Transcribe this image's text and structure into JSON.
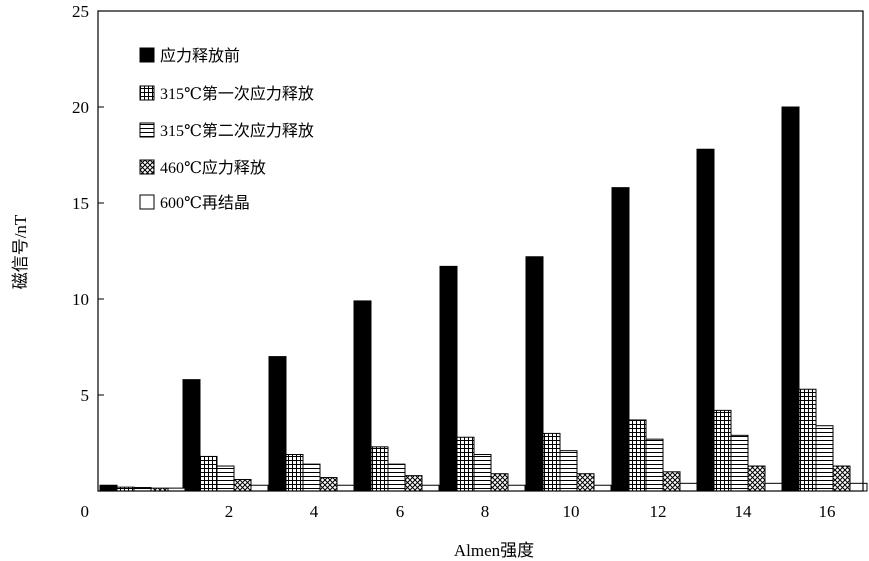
{
  "chart_data": {
    "type": "bar",
    "title": "",
    "xlabel": "Almen强度",
    "ylabel": "磁信号/nT",
    "ylim": [
      0,
      25
    ],
    "yticks": [
      "0",
      "5",
      "10",
      "15",
      "20",
      "25"
    ],
    "categories": [
      "0",
      "2",
      "4",
      "6",
      "8",
      "10",
      "12",
      "14",
      "16"
    ],
    "xtick_labels": [
      "2",
      "4",
      "6",
      "8",
      "10",
      "12",
      "14",
      "16"
    ],
    "grid": false,
    "legend_position": "top-left",
    "series": [
      {
        "name": "应力释放前",
        "pattern": "solid",
        "values": [
          0.3,
          5.8,
          7.0,
          9.9,
          11.7,
          12.2,
          15.8,
          17.8,
          20.0
        ]
      },
      {
        "name": "315℃第一次应力释放",
        "pattern": "grid",
        "values": [
          0.2,
          1.8,
          1.9,
          2.3,
          2.8,
          3.0,
          3.7,
          4.2,
          5.3
        ]
      },
      {
        "name": "315℃第二次应力释放",
        "pattern": "hlines",
        "values": [
          0.18,
          1.3,
          1.4,
          1.4,
          1.9,
          2.1,
          2.7,
          2.9,
          3.4
        ]
      },
      {
        "name": "460℃应力释放",
        "pattern": "cross",
        "values": [
          0.15,
          0.6,
          0.7,
          0.8,
          0.9,
          0.9,
          1.0,
          1.3,
          1.3
        ]
      },
      {
        "name": "600℃再结晶",
        "pattern": "empty",
        "values": [
          0.15,
          0.3,
          0.3,
          0.3,
          0.3,
          0.3,
          0.4,
          0.4,
          0.4
        ]
      }
    ]
  }
}
